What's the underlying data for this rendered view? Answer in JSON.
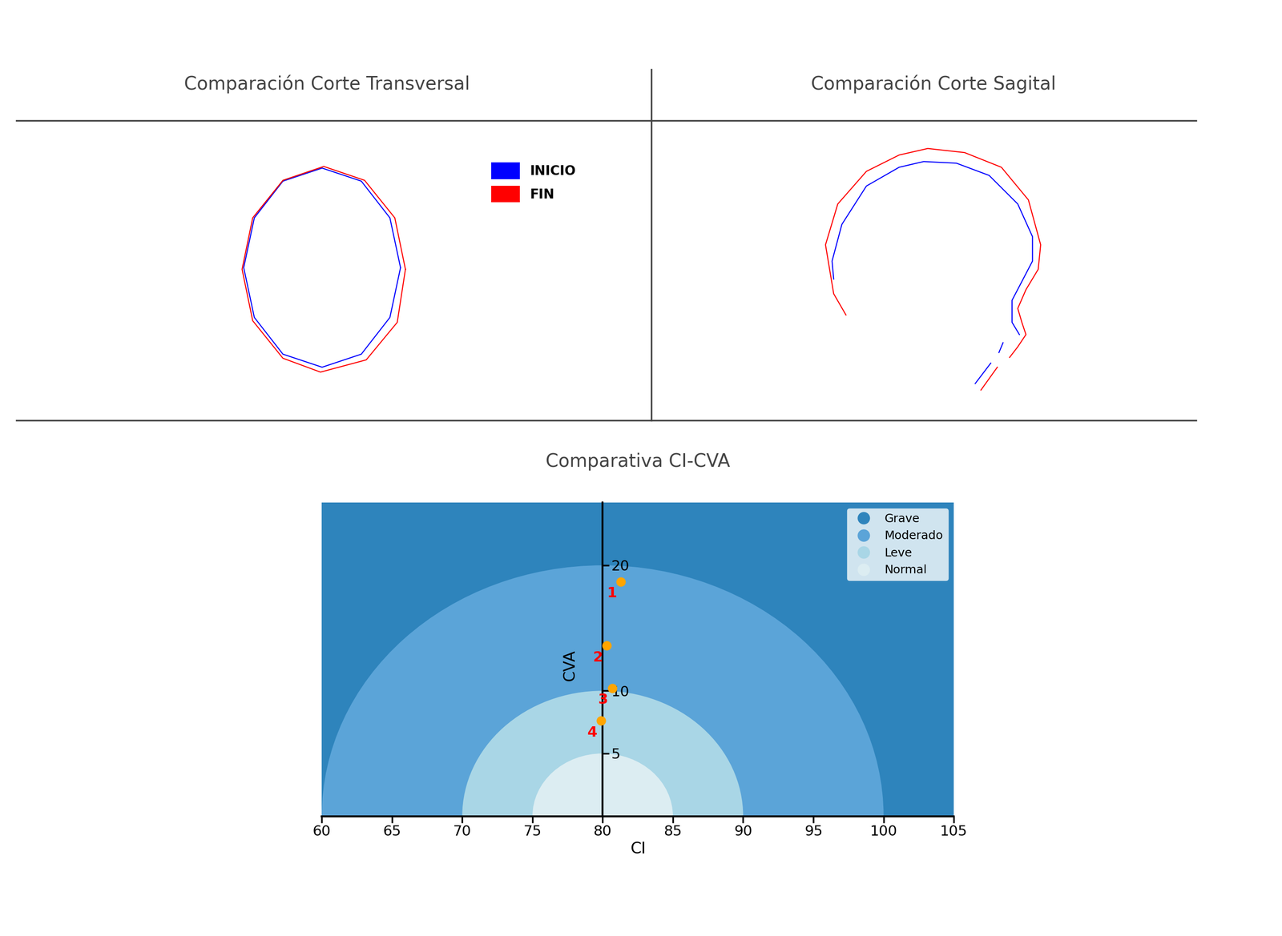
{
  "chart_data": [
    {
      "type": "line",
      "title": "Comparación Corte Transversal",
      "tick_labels": false,
      "legend": "upper right",
      "xlim": [
        20,
        797
      ],
      "ylim": [
        485,
        852
      ],
      "series": [
        {
          "name": "INICIO",
          "color": "#0000ff",
          "x": [
            490,
            477,
            442,
            394,
            346,
            311,
            298,
            311,
            346,
            394,
            442,
            477,
            490
          ],
          "values": [
            672,
            733,
            778,
            794,
            778,
            733,
            672,
            611,
            566,
            550,
            566,
            611,
            672
          ]
        },
        {
          "name": "FIN",
          "color": "#ff0000",
          "x": [
            496,
            483,
            446,
            396,
            346,
            309,
            296,
            309,
            346,
            392,
            448,
            486,
            496
          ],
          "values": [
            670,
            733,
            779,
            796,
            779,
            733,
            670,
            607,
            561,
            544,
            559,
            605,
            670
          ]
        }
      ]
    },
    {
      "type": "line",
      "title": "Comparación Corte Sagital",
      "tick_labels": false,
      "xlim": [
        797,
        1463
      ],
      "ylim": [
        485,
        852
      ],
      "series": [
        {
          "name": "INICIO",
          "color": "#0000ff",
          "x": [
            1020,
            1018,
            1030,
            1060,
            1100,
            1130,
            1170,
            1210,
            1245,
            1263,
            1263,
            1250,
            1238,
            1238,
            1247,
            null,
            1227,
            1222,
            null,
            1212,
            1193
          ],
          "values": [
            658,
            680,
            725,
            772,
            795,
            802,
            800,
            785,
            750,
            710,
            680,
            655,
            632,
            605,
            590,
            null,
            580,
            568,
            null,
            555,
            530
          ]
        },
        {
          "name": "FIN",
          "color": "#ff0000",
          "x": [
            1035,
            1020,
            1010,
            1025,
            1060,
            1100,
            1135,
            1180,
            1225,
            1258,
            1273,
            1270,
            1255,
            1245,
            1250,
            1255,
            1245,
            1235,
            null,
            1220,
            1200
          ],
          "values": [
            614,
            640,
            700,
            750,
            790,
            810,
            818,
            813,
            795,
            755,
            700,
            670,
            645,
            622,
            605,
            590,
            575,
            562,
            null,
            550,
            522
          ]
        }
      ]
    },
    {
      "type": "scatter",
      "title": "Comparativa CI-CVA",
      "x_label": "CI",
      "y_label": "CVA",
      "xlim": [
        60,
        105
      ],
      "ylim": [
        0,
        25
      ],
      "xticks": [
        60,
        65,
        70,
        75,
        80,
        85,
        90,
        95,
        100,
        105
      ],
      "yticks": [
        5,
        10,
        20
      ],
      "grid": false,
      "legend": "upper right",
      "center": [
        80,
        0
      ],
      "regions": [
        {
          "name": "Grave",
          "color": "#2e84bc"
        },
        {
          "name": "Moderado",
          "color": "#5ba4d8",
          "radius": 20
        },
        {
          "name": "Leve",
          "color": "#a9d6e6",
          "radius": 10
        },
        {
          "name": "Normal",
          "color": "#dcedf2",
          "radius": 5
        }
      ],
      "x": [
        81.3,
        80.3,
        80.7,
        79.9
      ],
      "values": [
        18.7,
        13.6,
        10.2,
        7.6
      ],
      "point_labels": [
        "1",
        "2",
        "3",
        "4"
      ],
      "color": "#ffa500",
      "marker": "o"
    }
  ]
}
